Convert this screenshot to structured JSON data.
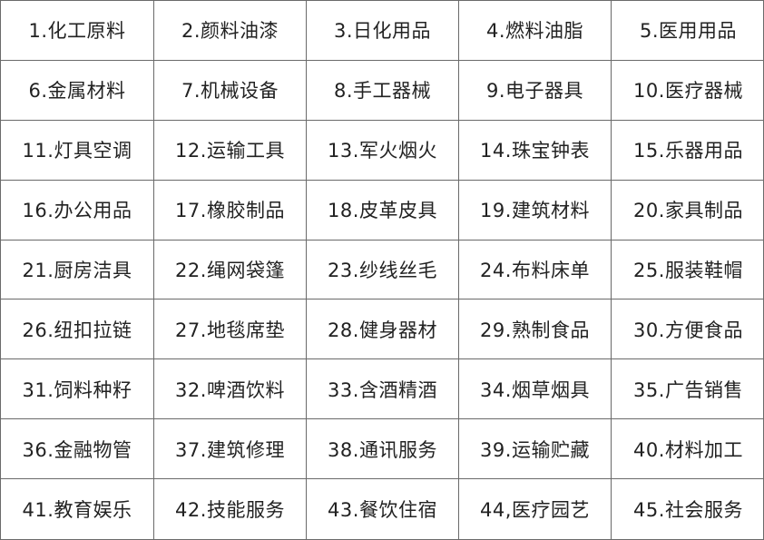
{
  "classes": [
    "1.化工原料",
    "2.颜料油漆",
    "3.日化用品",
    "4.燃料油脂",
    "5.医用用品",
    "6.金属材料",
    "7.机械设备",
    "8.手工器械",
    "9.电子器具",
    "10.医疗器械",
    "11.灯具空调",
    "12.运输工具",
    "13.军火烟火",
    "14.珠宝钟表",
    "15.乐器用品",
    "16.办公用品",
    "17.橡胶制品",
    "18.皮革皮具",
    "19.建筑材料",
    "20.家具制品",
    "21.厨房洁具",
    "22.绳网袋篷",
    "23.纱线丝毛",
    "24.布料床单",
    "25.服装鞋帽",
    "26.纽扣拉链",
    "27.地毯席垫",
    "28.健身器材",
    "29.熟制食品",
    "30.方便食品",
    "31.饲料种籽",
    "32.啤酒饮料",
    "33.含酒精酒",
    "34.烟草烟具",
    "35.广告销售",
    "36.金融物管",
    "37.建筑修理",
    "38.通讯服务",
    "39.运输贮藏",
    "40.材料加工",
    "41.教育娱乐",
    "42.技能服务",
    "43.餐饮住宿",
    "44,医疗园艺",
    "45.社会服务"
  ]
}
